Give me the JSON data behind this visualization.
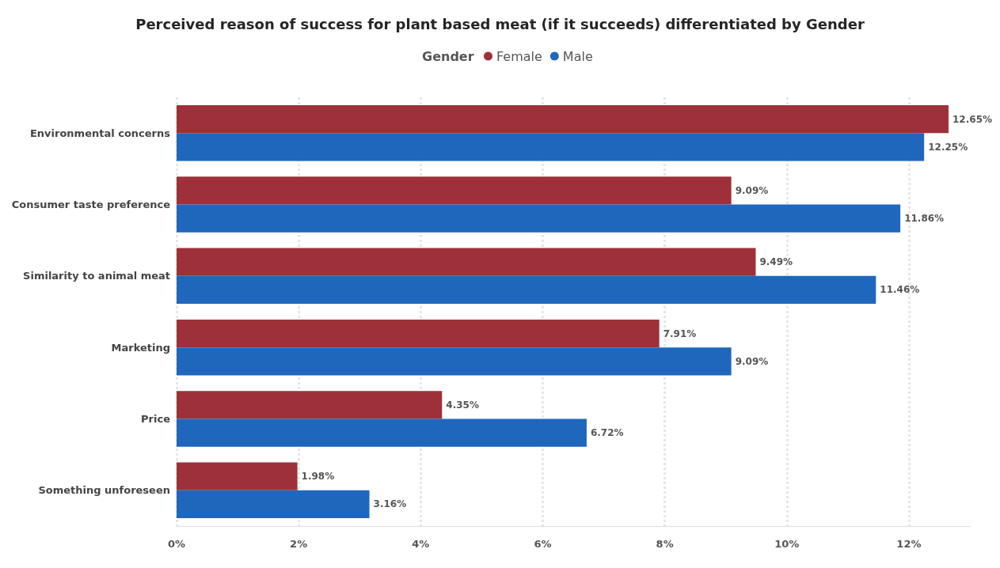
{
  "chart_data": {
    "type": "bar",
    "orientation": "horizontal",
    "title": "Perceived reason of success for plant based meat (if it succeeds) differentiated by Gender",
    "legend_title": "Gender",
    "legend": "top",
    "categories": [
      "Environmental concerns",
      "Consumer taste preference",
      "Similarity to animal meat",
      "Marketing",
      "Price",
      "Something unforeseen"
    ],
    "series": [
      {
        "name": "Female",
        "color": "#9e3039",
        "values": [
          12.65,
          9.09,
          9.49,
          7.91,
          4.35,
          1.98
        ],
        "value_labels": [
          "12.65%",
          "9.09%",
          "9.49%",
          "7.91%",
          "4.35%",
          "1.98%"
        ]
      },
      {
        "name": "Male",
        "color": "#1f67bd",
        "values": [
          12.25,
          11.86,
          11.46,
          9.09,
          6.72,
          3.16
        ],
        "value_labels": [
          "12.25%",
          "11.86%",
          "11.46%",
          "9.09%",
          "6.72%",
          "3.16%"
        ]
      }
    ],
    "xlim": [
      0,
      13
    ],
    "xticks": [
      {
        "value": 0,
        "label": "0%"
      },
      {
        "value": 2,
        "label": "2%"
      },
      {
        "value": 4,
        "label": "4%"
      },
      {
        "value": 6,
        "label": "6%"
      },
      {
        "value": 8,
        "label": "8%"
      },
      {
        "value": 10,
        "label": "10%"
      },
      {
        "value": 12,
        "label": "12%"
      }
    ],
    "grid": "x"
  }
}
